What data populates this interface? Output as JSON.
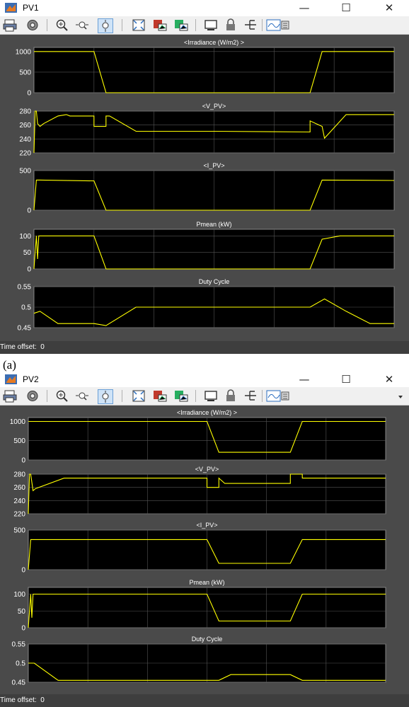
{
  "caption_a": "(a)",
  "windows": [
    {
      "title": "PV1",
      "status_label": "Time offset:",
      "status_value": "0",
      "x_ticks": [
        "0",
        "0.5",
        "1",
        "1.5",
        "2",
        "2.5",
        "3"
      ],
      "scopes": [
        {
          "title": "<Irradiance (W/m2) >",
          "yticks": [
            "1000",
            "500",
            "0"
          ]
        },
        {
          "title": "<V_PV>",
          "yticks": [
            "280",
            "260",
            "240",
            "220"
          ]
        },
        {
          "title": "<I_PV>",
          "yticks": [
            "500",
            "0"
          ]
        },
        {
          "title": "Pmean (kW)",
          "yticks": [
            "100",
            "50",
            "0"
          ]
        },
        {
          "title": "Duty Cycle",
          "yticks": [
            "0.55",
            "0.5",
            "0.45"
          ]
        }
      ]
    },
    {
      "title": "PV2",
      "status_label": "Time offset:",
      "status_value": "0",
      "x_ticks": [
        "0",
        "0.5",
        "1",
        "1.5",
        "2",
        "2.5",
        "3"
      ],
      "scopes": [
        {
          "title": "<Irradiance (W/m2) >",
          "yticks": [
            "1000",
            "500",
            "0"
          ]
        },
        {
          "title": "<V_PV>",
          "yticks": [
            "280",
            "260",
            "240",
            "220"
          ]
        },
        {
          "title": "<I_PV>",
          "yticks": [
            "500",
            "0"
          ]
        },
        {
          "title": "Pmean (kW)",
          "yticks": [
            "100",
            "50",
            "0"
          ]
        },
        {
          "title": "Duty Cycle",
          "yticks": [
            "0.55",
            "0.5",
            "0.45"
          ]
        }
      ]
    }
  ],
  "titlebar_buttons": {
    "minimize": "—",
    "maximize": "☐",
    "close": "✕"
  },
  "toolbar_icons": [
    "print-icon",
    "settings-icon",
    "zoom-in-icon",
    "zoom-x-icon",
    "zoom-y-icon",
    "autoscale-icon",
    "save-axes-icon",
    "restore-icon",
    "parameters-icon",
    "lock-icon",
    "legend-icon",
    "signal-selector-icon"
  ],
  "colors": {
    "plot_bg": "#000000",
    "frame_bg": "#4a4a4a",
    "trace": "#ffff00",
    "grid": "#555555",
    "text": "#ffffff"
  },
  "chart_data": [
    {
      "type": "line",
      "window": "PV1",
      "title": "<Irradiance (W/m2) >",
      "ylim": [
        0,
        1100
      ],
      "xlim": [
        0,
        3
      ],
      "series": [
        {
          "x": [
            0,
            0.5,
            0.6,
            2.3,
            2.4,
            3
          ],
          "y": [
            1000,
            1000,
            0,
            0,
            1000,
            1000
          ]
        }
      ]
    },
    {
      "type": "line",
      "window": "PV1",
      "title": "<V_PV>",
      "ylim": [
        220,
        280
      ],
      "xlim": [
        0,
        3
      ],
      "series": [
        {
          "x": [
            0,
            0.01,
            0.02,
            0.03,
            0.05,
            0.08,
            0.2,
            0.27,
            0.3,
            0.5,
            0.5,
            0.6,
            0.6,
            0.63,
            0.85,
            1.5,
            2.3,
            2.3,
            2.35,
            2.4,
            2.42,
            2.6,
            3
          ],
          "y": [
            220,
            280,
            280,
            262,
            258,
            262,
            273,
            275,
            273,
            273,
            258,
            258,
            273,
            273,
            251,
            251,
            250,
            266,
            262,
            258,
            241,
            275,
            275
          ]
        }
      ]
    },
    {
      "type": "line",
      "window": "PV1",
      "title": "<I_PV>",
      "ylim": [
        0,
        500
      ],
      "xlim": [
        0,
        3
      ],
      "series": [
        {
          "x": [
            0,
            0.02,
            0.05,
            0.5,
            0.6,
            2.3,
            2.4,
            3
          ],
          "y": [
            0,
            380,
            380,
            370,
            0,
            0,
            380,
            375
          ]
        }
      ]
    },
    {
      "type": "line",
      "window": "PV1",
      "title": "Pmean (kW)",
      "ylim": [
        0,
        120
      ],
      "xlim": [
        0,
        3
      ],
      "series": [
        {
          "x": [
            0,
            0.02,
            0.03,
            0.04,
            0.05,
            0.5,
            0.6,
            2.3,
            2.4,
            2.55,
            3
          ],
          "y": [
            0,
            100,
            30,
            100,
            100,
            100,
            0,
            0,
            90,
            100,
            100
          ]
        }
      ]
    },
    {
      "type": "line",
      "window": "PV1",
      "title": "Duty Cycle",
      "ylim": [
        0.45,
        0.55
      ],
      "xlim": [
        0,
        3
      ],
      "series": [
        {
          "x": [
            0,
            0.05,
            0.2,
            0.5,
            0.6,
            0.85,
            1.5,
            2.1,
            2.3,
            2.42,
            2.6,
            2.8,
            3
          ],
          "y": [
            0.485,
            0.49,
            0.46,
            0.46,
            0.455,
            0.5,
            0.5,
            0.5,
            0.5,
            0.52,
            0.49,
            0.46,
            0.46
          ]
        }
      ]
    },
    {
      "type": "line",
      "window": "PV2",
      "title": "<Irradiance (W/m2) >",
      "ylim": [
        0,
        1100
      ],
      "xlim": [
        0,
        3
      ],
      "series": [
        {
          "x": [
            0,
            1.5,
            1.6,
            2.2,
            2.3,
            3
          ],
          "y": [
            1000,
            1000,
            200,
            200,
            1000,
            1000
          ]
        }
      ]
    },
    {
      "type": "line",
      "window": "PV2",
      "title": "<V_PV>",
      "ylim": [
        220,
        280
      ],
      "xlim": [
        0,
        3
      ],
      "series": [
        {
          "x": [
            0,
            0.01,
            0.02,
            0.04,
            0.06,
            0.3,
            1.5,
            1.5,
            1.6,
            1.6,
            1.65,
            2.2,
            2.2,
            2.3,
            2.3,
            3
          ],
          "y": [
            220,
            280,
            280,
            255,
            258,
            274,
            274,
            260,
            260,
            274,
            266,
            266,
            280,
            280,
            274,
            274
          ]
        }
      ]
    },
    {
      "type": "line",
      "window": "PV2",
      "title": "<I_PV>",
      "ylim": [
        0,
        500
      ],
      "xlim": [
        0,
        3
      ],
      "series": [
        {
          "x": [
            0,
            0.02,
            0.05,
            1.5,
            1.6,
            2.2,
            2.3,
            3
          ],
          "y": [
            0,
            380,
            380,
            380,
            80,
            80,
            380,
            380
          ]
        }
      ]
    },
    {
      "type": "line",
      "window": "PV2",
      "title": "Pmean (kW)",
      "ylim": [
        0,
        120
      ],
      "xlim": [
        0,
        3
      ],
      "series": [
        {
          "x": [
            0,
            0.02,
            0.03,
            0.04,
            0.05,
            1.5,
            1.6,
            2.2,
            2.3,
            3
          ],
          "y": [
            0,
            100,
            30,
            100,
            100,
            100,
            20,
            20,
            100,
            100
          ]
        }
      ]
    },
    {
      "type": "line",
      "window": "PV2",
      "title": "Duty Cycle",
      "ylim": [
        0.45,
        0.55
      ],
      "xlim": [
        0,
        3
      ],
      "series": [
        {
          "x": [
            0,
            0.05,
            0.25,
            1.5,
            1.6,
            1.7,
            2.2,
            2.3,
            2.35,
            3
          ],
          "y": [
            0.5,
            0.5,
            0.455,
            0.455,
            0.455,
            0.47,
            0.47,
            0.455,
            0.455,
            0.455
          ]
        }
      ]
    }
  ]
}
